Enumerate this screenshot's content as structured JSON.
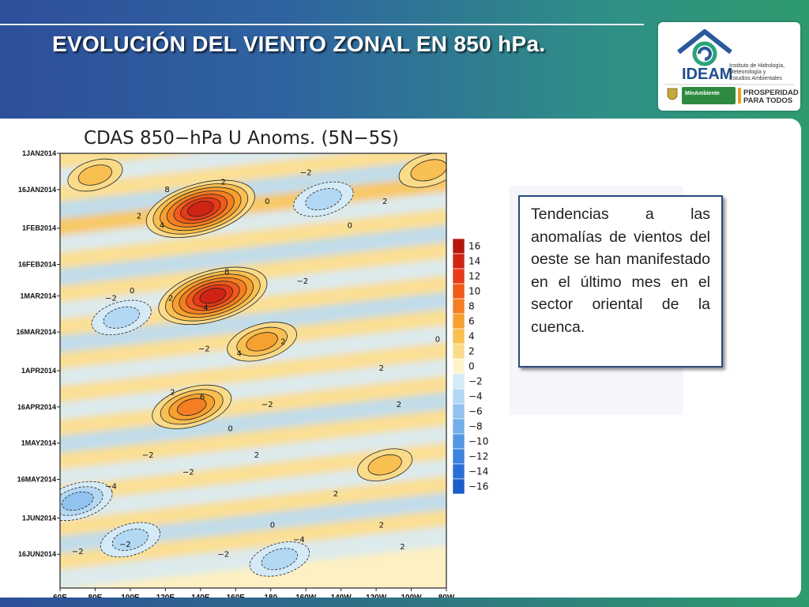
{
  "slide": {
    "title": "EVOLUCIÓN DEL VIENTO ZONAL EN 850 hPa.",
    "description": "Tendencias a las anomalías de vientos del oeste se han manifestado en el último mes en el sector oriental de la cuenca."
  },
  "logo": {
    "name": "IDEAM",
    "subtitle_lines": [
      "Instituto de Hidrología,",
      "Meteorología y",
      "Estudios Ambientales"
    ],
    "ministry": "MinAmbiente",
    "slogan_lines": [
      "PROSPERIDAD",
      "PARA TODOS"
    ],
    "icon": "ideam-house-swirl-icon"
  },
  "chart_data": {
    "type": "heatmap",
    "title": "CDAS 850−hPa U Anoms. (5N−5S)",
    "x_labels": [
      "60E",
      "80E",
      "100E",
      "120E",
      "140E",
      "160E",
      "180",
      "160W",
      "140W",
      "120W",
      "100W",
      "80W"
    ],
    "y_labels": [
      "1JAN2014",
      "16JAN2014",
      "1FEB2014",
      "16FEB2014",
      "1MAR2014",
      "16MAR2014",
      "1APR2014",
      "16APR2014",
      "1MAY2014",
      "16MAY2014",
      "1JUN2014",
      "16JUN2014"
    ],
    "colorbar_levels": [
      "16",
      "14",
      "12",
      "10",
      "8",
      "6",
      "4",
      "2",
      "0",
      "−2",
      "−4",
      "−6",
      "−8",
      "−10",
      "−12",
      "−14",
      "−16"
    ],
    "colorbar_colors": [
      "#b5150d",
      "#cf2414",
      "#e63a18",
      "#f05a1a",
      "#f47e22",
      "#f6a02f",
      "#f8bf52",
      "#fadb8a",
      "#fdf4cc",
      "#d5eaf7",
      "#b3d8f4",
      "#92c3ee",
      "#72aee8",
      "#5597e2",
      "#3d82dc",
      "#2a6ed4",
      "#1c5cc8"
    ],
    "blobs": [
      {
        "lon": 140,
        "date": "2014-01-24",
        "amp": 14
      },
      {
        "lon": 147,
        "date": "2014-03-01",
        "amp": 14
      },
      {
        "lon": 135,
        "date": "2014-04-16",
        "amp": 8
      },
      {
        "lon": 175,
        "date": "2014-03-20",
        "amp": 6
      },
      {
        "lon": 70,
        "date": "2014-05-25",
        "amp": -6
      },
      {
        "lon": 95,
        "date": "2014-03-10",
        "amp": -4
      },
      {
        "lon": 210,
        "date": "2014-01-20",
        "amp": -4
      },
      {
        "lon": 245,
        "date": "2014-05-10",
        "amp": 3
      },
      {
        "lon": 185,
        "date": "2014-06-18",
        "amp": -4
      },
      {
        "lon": 100,
        "date": "2014-06-10",
        "amp": -4
      },
      {
        "lon": 270,
        "date": "2014-01-08",
        "amp": 4
      },
      {
        "lon": 80,
        "date": "2014-01-10",
        "amp": 3
      }
    ],
    "contour_labels": [
      {
        "text": "−2",
        "lon": 200,
        "date": "2014-01-10"
      },
      {
        "text": "2",
        "lon": 153,
        "date": "2014-01-14"
      },
      {
        "text": "8",
        "lon": 121,
        "date": "2014-01-17"
      },
      {
        "text": "4",
        "lon": 118,
        "date": "2014-02-01"
      },
      {
        "text": "2",
        "lon": 105,
        "date": "2014-01-28"
      },
      {
        "text": "0",
        "lon": 178,
        "date": "2014-01-22"
      },
      {
        "text": "2",
        "lon": 245,
        "date": "2014-01-22"
      },
      {
        "text": "0",
        "lon": 225,
        "date": "2014-02-01"
      },
      {
        "text": "8",
        "lon": 155,
        "date": "2014-02-20"
      },
      {
        "text": "4",
        "lon": 143,
        "date": "2014-03-07"
      },
      {
        "text": "2",
        "lon": 123,
        "date": "2014-03-03"
      },
      {
        "text": "−2",
        "lon": 198,
        "date": "2014-02-24"
      },
      {
        "text": "−2",
        "lon": 89,
        "date": "2014-03-03"
      },
      {
        "text": "0",
        "lon": 101,
        "date": "2014-02-28"
      },
      {
        "text": "2",
        "lon": 187,
        "date": "2014-03-21"
      },
      {
        "text": "4",
        "lon": 162,
        "date": "2014-03-26"
      },
      {
        "text": "−2",
        "lon": 142,
        "date": "2014-03-24"
      },
      {
        "text": "2",
        "lon": 243,
        "date": "2014-04-01"
      },
      {
        "text": "0",
        "lon": 275,
        "date": "2014-03-20"
      },
      {
        "text": "2",
        "lon": 124,
        "date": "2014-04-11"
      },
      {
        "text": "6",
        "lon": 141,
        "date": "2014-04-13"
      },
      {
        "text": "−2",
        "lon": 178,
        "date": "2014-04-16"
      },
      {
        "text": "2",
        "lon": 253,
        "date": "2014-04-16"
      },
      {
        "text": "0",
        "lon": 157,
        "date": "2014-04-26"
      },
      {
        "text": "−2",
        "lon": 110,
        "date": "2014-05-07"
      },
      {
        "text": "2",
        "lon": 172,
        "date": "2014-05-07"
      },
      {
        "text": "−2",
        "lon": 133,
        "date": "2014-05-14"
      },
      {
        "text": "−4",
        "lon": 89,
        "date": "2014-05-20"
      },
      {
        "text": "2",
        "lon": 217,
        "date": "2014-05-23"
      },
      {
        "text": "0",
        "lon": 181,
        "date": "2014-06-05"
      },
      {
        "text": "2",
        "lon": 243,
        "date": "2014-06-05"
      },
      {
        "text": "−2",
        "lon": 97,
        "date": "2014-06-13"
      },
      {
        "text": "−4",
        "lon": 196,
        "date": "2014-06-11"
      },
      {
        "text": "2",
        "lon": 255,
        "date": "2014-06-14"
      },
      {
        "text": "−2",
        "lon": 153,
        "date": "2014-06-17"
      },
      {
        "text": "−2",
        "lon": 70,
        "date": "2014-06-16"
      }
    ]
  }
}
